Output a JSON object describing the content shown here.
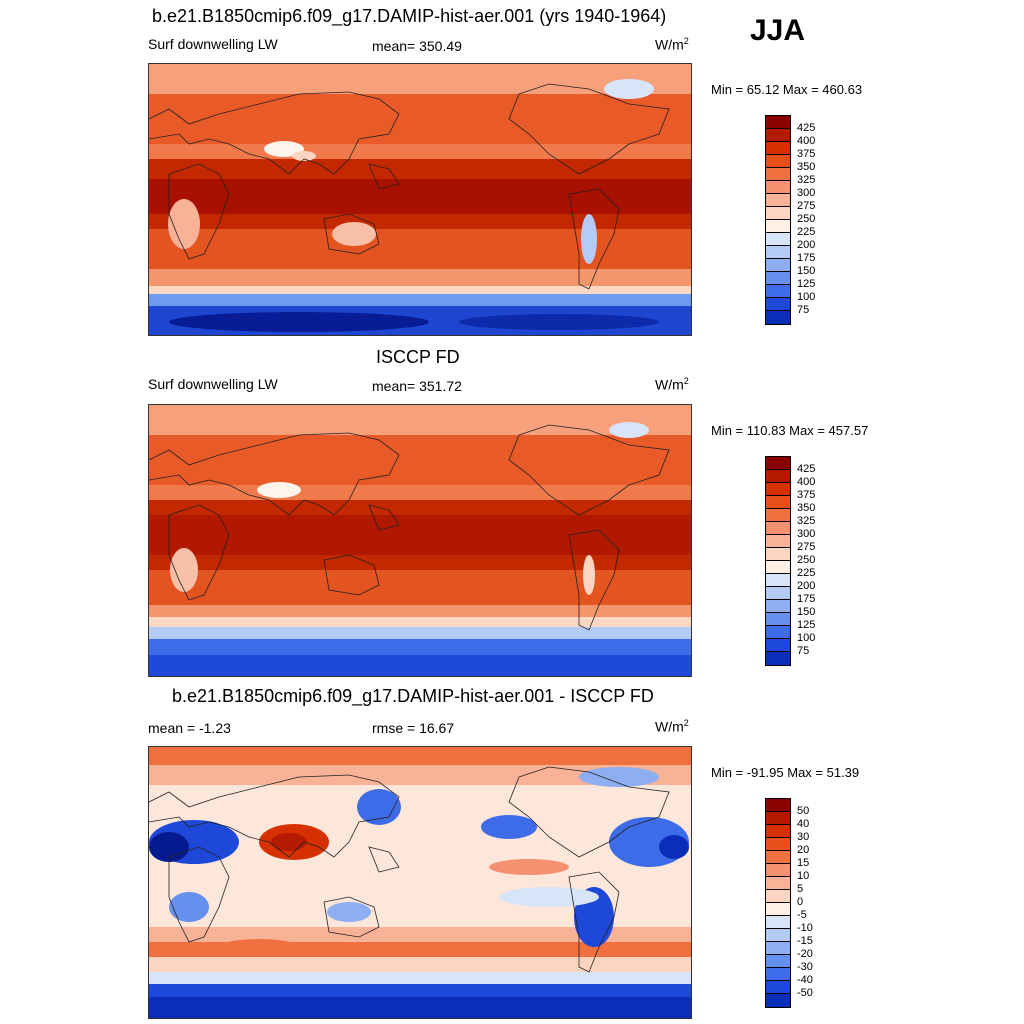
{
  "season": "JJA",
  "units": "W/m",
  "units_sup": "2",
  "panels": [
    {
      "title": "b.e21.B1850cmip6.f09_g17.DAMIP-hist-aer.001 (yrs 1940-1964)",
      "left_label": "Surf downwelling LW",
      "center_label": "mean= 350.49",
      "minmax": "Min =  65.12 Max = 460.63",
      "levels": [
        "425",
        "400",
        "375",
        "350",
        "325",
        "300",
        "275",
        "250",
        "225",
        "200",
        "175",
        "150",
        "125",
        "100",
        "75"
      ],
      "colors": [
        "#8b0000",
        "#b31a00",
        "#d63000",
        "#e8501a",
        "#f07040",
        "#f59170",
        "#f8b298",
        "#fcd4c0",
        "#fff0e6",
        "#d8e4f8",
        "#b4cbf5",
        "#8eaef2",
        "#6690ee",
        "#3e6ce8",
        "#1e48d8",
        "#0a2eb8",
        "#061a90"
      ],
      "tropics_color": "#a81000"
    },
    {
      "title": "ISCCP FD",
      "left_label": "Surf downwelling LW",
      "center_label": "mean= 351.72",
      "minmax": "Min = 110.83 Max = 457.57",
      "levels": [
        "425",
        "400",
        "375",
        "350",
        "325",
        "300",
        "275",
        "250",
        "225",
        "200",
        "175",
        "150",
        "125",
        "100",
        "75"
      ],
      "colors": [
        "#8b0000",
        "#b31a00",
        "#d63000",
        "#e8501a",
        "#f07040",
        "#f59170",
        "#f8b298",
        "#fcd4c0",
        "#fff0e6",
        "#d8e4f8",
        "#b4cbf5",
        "#8eaef2",
        "#6690ee",
        "#3e6ce8",
        "#1e48d8",
        "#0a2eb8",
        "#061a90"
      ],
      "tropics_color": "#b01800"
    },
    {
      "title": "b.e21.B1850cmip6.f09_g17.DAMIP-hist-aer.001 - ISCCP FD",
      "left_label": "mean =  -1.23",
      "center_label": "rmse =  16.67",
      "minmax": "Min = -91.95 Max =  51.39",
      "levels": [
        "50",
        "40",
        "30",
        "20",
        "15",
        "10",
        "5",
        "0",
        "-5",
        "-10",
        "-15",
        "-20",
        "-30",
        "-40",
        "-50"
      ],
      "colors": [
        "#8b0000",
        "#b31a00",
        "#d63000",
        "#e8501a",
        "#f07040",
        "#f59170",
        "#f8b298",
        "#fcd4c0",
        "#fff0e6",
        "#d8e4f8",
        "#b4cbf5",
        "#8eaef2",
        "#6690ee",
        "#3e6ce8",
        "#1e48d8",
        "#0a2eb8",
        "#061a90"
      ]
    }
  ]
}
